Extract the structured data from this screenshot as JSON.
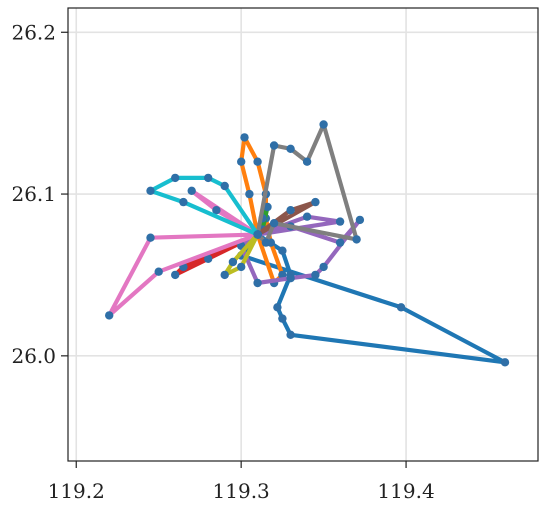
{
  "chart_data": {
    "type": "line",
    "title": "",
    "xlabel": "",
    "ylabel": "",
    "xlim": [
      119.195,
      119.48
    ],
    "ylim": [
      25.935,
      26.215
    ],
    "x_ticks": [
      {
        "value": 119.2,
        "label": "119.2"
      },
      {
        "value": 119.3,
        "label": "119.3"
      },
      {
        "value": 119.4,
        "label": "119.4"
      }
    ],
    "y_ticks": [
      {
        "value": 26.0,
        "label": "26.0"
      },
      {
        "value": 26.1,
        "label": "26.1"
      },
      {
        "value": 26.2,
        "label": "26.2"
      }
    ],
    "grid": true,
    "legend": "none",
    "marker_color": "#2f6fa7",
    "series": [
      {
        "color": "#1f77b4",
        "x": [
          119.31,
          119.325,
          119.33,
          119.322,
          119.325,
          119.33,
          119.46,
          119.397,
          119.3,
          119.31
        ],
        "y": [
          26.075,
          26.065,
          26.05,
          26.03,
          26.023,
          26.013,
          25.996,
          26.03,
          26.062,
          26.075
        ]
      },
      {
        "color": "#ff7f0e",
        "x": [
          119.31,
          119.305,
          119.3,
          119.302,
          119.31,
          119.315,
          119.315,
          119.318,
          119.325,
          119.32,
          119.31
        ],
        "y": [
          26.075,
          26.1,
          26.12,
          26.135,
          26.12,
          26.1,
          26.085,
          26.07,
          26.05,
          26.045,
          26.075
        ]
      },
      {
        "color": "#2ca02c",
        "x": [
          119.31,
          119.313,
          119.316,
          119.313,
          119.31
        ],
        "y": [
          26.075,
          26.085,
          26.092,
          26.078,
          26.075
        ]
      },
      {
        "color": "#d62728",
        "x": [
          119.31,
          119.28,
          119.26,
          119.265,
          119.31
        ],
        "y": [
          26.075,
          26.06,
          26.05,
          26.055,
          26.075
        ]
      },
      {
        "color": "#9467bd",
        "x": [
          119.31,
          119.33,
          119.36,
          119.372,
          119.35,
          119.345,
          119.33,
          119.31,
          119.3,
          119.31,
          119.34,
          119.36,
          119.31
        ],
        "y": [
          26.075,
          26.08,
          26.07,
          26.084,
          26.055,
          26.05,
          26.048,
          26.045,
          26.068,
          26.075,
          26.086,
          26.083,
          26.075
        ]
      },
      {
        "color": "#8c564b",
        "x": [
          119.31,
          119.33,
          119.345,
          119.31
        ],
        "y": [
          26.075,
          26.09,
          26.095,
          26.075
        ]
      },
      {
        "color": "#e377c2",
        "x": [
          119.31,
          119.27,
          119.285,
          119.31,
          119.245,
          119.22,
          119.25,
          119.31
        ],
        "y": [
          26.075,
          26.102,
          26.09,
          26.075,
          26.073,
          26.025,
          26.052,
          26.075
        ]
      },
      {
        "color": "#7f7f7f",
        "x": [
          119.31,
          119.32,
          119.33,
          119.34,
          119.35,
          119.37,
          119.32,
          119.315,
          119.31
        ],
        "y": [
          26.075,
          26.13,
          26.128,
          26.12,
          26.143,
          26.072,
          26.082,
          26.07,
          26.075
        ]
      },
      {
        "color": "#bcbd22",
        "x": [
          119.31,
          119.295,
          119.29,
          119.3,
          119.31
        ],
        "y": [
          26.075,
          26.058,
          26.05,
          26.055,
          26.075
        ]
      },
      {
        "color": "#17becf",
        "x": [
          119.31,
          119.29,
          119.28,
          119.26,
          119.245,
          119.265,
          119.31
        ],
        "y": [
          26.075,
          26.105,
          26.11,
          26.11,
          26.102,
          26.095,
          26.075
        ]
      }
    ]
  }
}
